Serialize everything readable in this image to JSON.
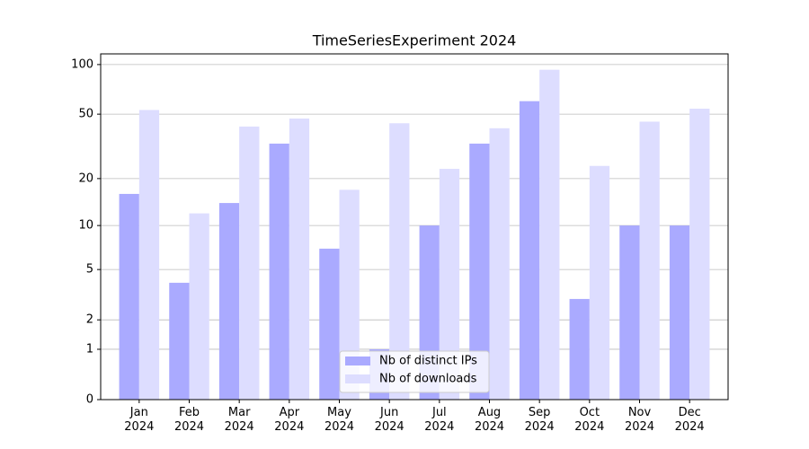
{
  "chart_data": {
    "type": "bar",
    "title": "TimeSeriesExperiment 2024",
    "categories": [
      "Jan\n2024",
      "Feb\n2024",
      "Mar\n2024",
      "Apr\n2024",
      "May\n2024",
      "Jun\n2024",
      "Jul\n2024",
      "Aug\n2024",
      "Sep\n2024",
      "Oct\n2024",
      "Nov\n2024",
      "Dec\n2024"
    ],
    "series": [
      {
        "name": "Nb of distinct IPs",
        "color": "#aaaaff",
        "values": [
          16,
          4,
          14,
          33,
          7,
          1,
          10,
          33,
          60,
          3,
          10,
          10
        ]
      },
      {
        "name": "Nb of downloads",
        "color": "#ddddff",
        "values": [
          53,
          12,
          42,
          47,
          17,
          44,
          23,
          41,
          93,
          24,
          45,
          54
        ]
      }
    ],
    "yscale": "log1p",
    "ylim": [
      0,
      116
    ],
    "yticks": [
      0,
      1,
      2,
      5,
      10,
      20,
      50,
      100
    ],
    "grid": true,
    "legend": "lower center"
  }
}
